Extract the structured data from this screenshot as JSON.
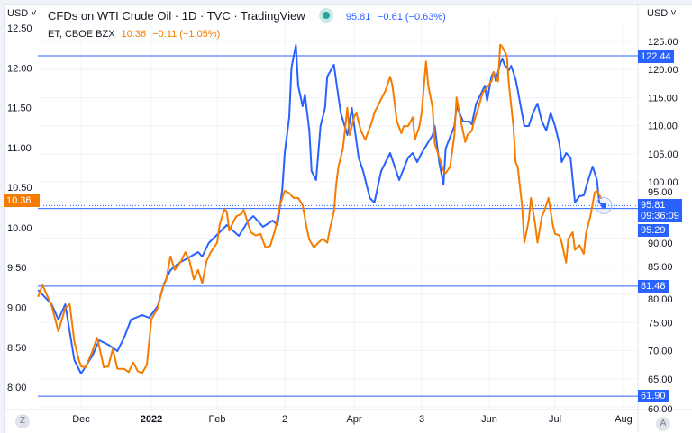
{
  "header": {
    "currency_left": "USD",
    "currency_right": "USD",
    "title": "CFDs on WTI Crude Oil · 1D · TVC · TradingView",
    "main_price": "95.81",
    "main_change": "−0.61 (−0.63%)",
    "compare_symbol": "ET, CBOE BZX",
    "compare_price": "10.36",
    "compare_change": "−0.11 (−1.05%)",
    "market_status": "open"
  },
  "badges": {
    "left_price": "10.36",
    "line_122": "122.44",
    "line_81": "81.48",
    "line_61": "61.90",
    "last_price": "95.81",
    "countdown": "09:36:09",
    "line_95": "95.29"
  },
  "buttons": {
    "zoom_label": "Z",
    "auto_label": "A"
  },
  "colors": {
    "wti": "#2962ff",
    "et": "#f57c00",
    "hline": "#2962ff",
    "grid": "#f0f3fa"
  },
  "chart_data": {
    "type": "line",
    "grid": true,
    "x_ticks": [
      {
        "label": "Dec",
        "date": "2021-12-01"
      },
      {
        "label": "2022",
        "date": "2022-01-01"
      },
      {
        "label": "Feb",
        "date": "2022-02-01"
      },
      {
        "label": "2",
        "date": "2022-03-01"
      },
      {
        "label": "Apr",
        "date": "2022-04-01"
      },
      {
        "label": "3",
        "date": "2022-05-01"
      },
      {
        "label": "Jun",
        "date": "2022-06-01"
      },
      {
        "label": "Jul",
        "date": "2022-07-01"
      },
      {
        "label": "Aug",
        "date": "2022-08-01"
      }
    ],
    "left_axis": {
      "ylim": [
        7.86,
        12.6
      ],
      "ticks": [
        "12.50",
        "12.00",
        "11.50",
        "11.00",
        "10.50",
        "10.00",
        "9.50",
        "9.00",
        "8.50",
        "8.00"
      ]
    },
    "right_axis": {
      "ylim": [
        59,
        125.5
      ],
      "ticks": [
        "125.00",
        "120.00",
        "115.00",
        "110.00",
        "105.00",
        "100.00",
        "95.00",
        "90.00",
        "85.00",
        "80.00",
        "75.00",
        "70.00",
        "65.00",
        "60.00"
      ]
    },
    "horizontal_lines": [
      122.44,
      95.29,
      81.48,
      61.9
    ],
    "series": [
      {
        "name": "CFDs on WTI Crude Oil",
        "axis": "right",
        "color": "#2962ff",
        "points": [
          [
            "2021-11-12",
            80.81
          ],
          [
            "2021-11-18",
            78.25
          ],
          [
            "2021-11-21",
            75.53
          ],
          [
            "2021-11-24",
            78.25
          ],
          [
            "2021-11-28",
            68.32
          ],
          [
            "2021-12-01",
            65.92
          ],
          [
            "2021-12-06",
            69.13
          ],
          [
            "2021-12-09",
            71.85
          ],
          [
            "2021-12-13",
            71.05
          ],
          [
            "2021-12-17",
            69.93
          ],
          [
            "2021-12-20",
            72.33
          ],
          [
            "2021-12-23",
            75.53
          ],
          [
            "2021-12-28",
            76.33
          ],
          [
            "2021-12-31",
            75.85
          ],
          [
            "2022-01-04",
            77.93
          ],
          [
            "2022-01-07",
            81.93
          ],
          [
            "2022-01-10",
            84.33
          ],
          [
            "2022-01-14",
            85.6
          ],
          [
            "2022-01-18",
            86.42
          ],
          [
            "2022-01-23",
            87.54
          ],
          [
            "2022-01-25",
            86.74
          ],
          [
            "2022-01-28",
            89.14
          ],
          [
            "2022-02-02",
            91.06
          ],
          [
            "2022-02-05",
            92.34
          ],
          [
            "2022-02-07",
            91.54
          ],
          [
            "2022-02-10",
            90.42
          ],
          [
            "2022-02-14",
            93.14
          ],
          [
            "2022-02-16",
            93.94
          ],
          [
            "2022-02-20",
            92.02
          ],
          [
            "2022-02-24",
            93.14
          ],
          [
            "2022-02-26",
            92.34
          ],
          [
            "2022-02-28",
            98.74
          ],
          [
            "2022-03-01",
            105.15
          ],
          [
            "2022-03-03",
            111.55
          ],
          [
            "2022-03-04",
            120.36
          ],
          [
            "2022-03-06",
            124.36
          ],
          [
            "2022-03-07",
            117.16
          ],
          [
            "2022-03-09",
            113.47
          ],
          [
            "2022-03-10",
            115.55
          ],
          [
            "2022-03-12",
            109.15
          ],
          [
            "2022-03-13",
            101.95
          ],
          [
            "2022-03-15",
            100.35
          ],
          [
            "2022-03-17",
            109.95
          ],
          [
            "2022-03-19",
            113.15
          ],
          [
            "2022-03-20",
            118.76
          ],
          [
            "2022-03-23",
            120.84
          ],
          [
            "2022-03-24",
            117.96
          ],
          [
            "2022-03-26",
            112.35
          ],
          [
            "2022-03-29",
            108.35
          ],
          [
            "2022-03-31",
            113.15
          ],
          [
            "2022-04-03",
            104.35
          ],
          [
            "2022-04-05",
            101.95
          ],
          [
            "2022-04-08",
            97.14
          ],
          [
            "2022-04-10",
            96.34
          ],
          [
            "2022-04-13",
            101.95
          ],
          [
            "2022-04-17",
            105.15
          ],
          [
            "2022-04-21",
            100.35
          ],
          [
            "2022-04-25",
            104.35
          ],
          [
            "2022-04-27",
            105.15
          ],
          [
            "2022-04-29",
            103.55
          ],
          [
            "2022-05-01",
            105.15
          ],
          [
            "2022-05-06",
            108.35
          ],
          [
            "2022-05-07",
            109.95
          ],
          [
            "2022-05-09",
            103.55
          ],
          [
            "2022-05-11",
            99.54
          ],
          [
            "2022-05-12",
            105.95
          ],
          [
            "2022-05-16",
            109.95
          ],
          [
            "2022-05-17",
            113.47
          ],
          [
            "2022-05-20",
            110.75
          ],
          [
            "2022-05-23",
            110.75
          ],
          [
            "2022-05-24",
            110.27
          ],
          [
            "2022-05-26",
            113.95
          ],
          [
            "2022-05-30",
            117.16
          ],
          [
            "2022-05-31",
            114.43
          ],
          [
            "2022-06-02",
            118.76
          ],
          [
            "2022-06-03",
            119.56
          ],
          [
            "2022-06-04",
            117.96
          ],
          [
            "2022-06-06",
            121.16
          ],
          [
            "2022-06-07",
            121.96
          ],
          [
            "2022-06-08",
            120.84
          ],
          [
            "2022-06-10",
            119.88
          ],
          [
            "2022-06-11",
            120.68
          ],
          [
            "2022-06-13",
            118.28
          ],
          [
            "2022-06-14",
            116.35
          ],
          [
            "2022-06-17",
            109.95
          ],
          [
            "2022-06-19",
            109.95
          ],
          [
            "2022-06-21",
            112.35
          ],
          [
            "2022-06-23",
            113.95
          ],
          [
            "2022-06-25",
            110.75
          ],
          [
            "2022-06-27",
            109.15
          ],
          [
            "2022-06-29",
            112.35
          ],
          [
            "2022-07-01",
            109.95
          ],
          [
            "2022-07-03",
            106.75
          ],
          [
            "2022-07-04",
            103.55
          ],
          [
            "2022-07-06",
            105.15
          ],
          [
            "2022-07-08",
            104.35
          ],
          [
            "2022-07-10",
            96.34
          ],
          [
            "2022-07-12",
            97.46
          ],
          [
            "2022-07-14",
            97.62
          ],
          [
            "2022-07-16",
            100.35
          ],
          [
            "2022-07-18",
            102.75
          ],
          [
            "2022-07-20",
            100.35
          ],
          [
            "2022-07-21",
            96.34
          ],
          [
            "2022-07-23",
            95.81
          ]
        ]
      },
      {
        "name": "ET, CBOE BZX",
        "axis": "left",
        "color": "#f57c00",
        "points": [
          [
            "2021-11-12",
            9.13
          ],
          [
            "2021-11-14",
            9.28
          ],
          [
            "2021-11-18",
            9.02
          ],
          [
            "2021-11-21",
            8.7
          ],
          [
            "2021-11-24",
            8.99
          ],
          [
            "2021-11-26",
            9.04
          ],
          [
            "2021-11-28",
            8.57
          ],
          [
            "2021-11-30",
            8.34
          ],
          [
            "2021-12-01",
            8.26
          ],
          [
            "2021-12-03",
            8.25
          ],
          [
            "2021-12-06",
            8.45
          ],
          [
            "2021-12-08",
            8.62
          ],
          [
            "2021-12-09",
            8.51
          ],
          [
            "2021-12-11",
            8.25
          ],
          [
            "2021-12-13",
            8.26
          ],
          [
            "2021-12-15",
            8.48
          ],
          [
            "2021-12-17",
            8.23
          ],
          [
            "2021-12-20",
            8.23
          ],
          [
            "2021-12-22",
            8.19
          ],
          [
            "2021-12-24",
            8.31
          ],
          [
            "2021-12-26",
            8.2
          ],
          [
            "2021-12-28",
            8.18
          ],
          [
            "2021-12-30",
            8.28
          ],
          [
            "2022-01-01",
            8.85
          ],
          [
            "2022-01-04",
            8.99
          ],
          [
            "2022-01-06",
            9.22
          ],
          [
            "2022-01-08",
            9.35
          ],
          [
            "2022-01-10",
            9.64
          ],
          [
            "2022-01-12",
            9.47
          ],
          [
            "2022-01-15",
            9.58
          ],
          [
            "2022-01-17",
            9.69
          ],
          [
            "2022-01-19",
            9.58
          ],
          [
            "2022-01-21",
            9.35
          ],
          [
            "2022-01-23",
            9.47
          ],
          [
            "2022-01-25",
            9.3
          ],
          [
            "2022-01-27",
            9.58
          ],
          [
            "2022-01-29",
            9.69
          ],
          [
            "2022-02-01",
            9.81
          ],
          [
            "2022-02-02",
            10.03
          ],
          [
            "2022-02-04",
            10.23
          ],
          [
            "2022-02-05",
            10.2
          ],
          [
            "2022-02-06",
            9.96
          ],
          [
            "2022-02-08",
            10.09
          ],
          [
            "2022-02-09",
            10.14
          ],
          [
            "2022-02-11",
            10.17
          ],
          [
            "2022-02-12",
            10.22
          ],
          [
            "2022-02-14",
            10.03
          ],
          [
            "2022-02-15",
            9.94
          ],
          [
            "2022-02-17",
            9.9
          ],
          [
            "2022-02-19",
            9.92
          ],
          [
            "2022-02-21",
            9.75
          ],
          [
            "2022-02-23",
            9.77
          ],
          [
            "2022-02-25",
            9.97
          ],
          [
            "2022-02-27",
            10.28
          ],
          [
            "2022-03-01",
            10.46
          ],
          [
            "2022-03-03",
            10.43
          ],
          [
            "2022-03-05",
            10.37
          ],
          [
            "2022-03-07",
            10.37
          ],
          [
            "2022-03-09",
            10.28
          ],
          [
            "2022-03-11",
            9.97
          ],
          [
            "2022-03-12",
            9.85
          ],
          [
            "2022-03-14",
            9.75
          ],
          [
            "2022-03-16",
            9.81
          ],
          [
            "2022-03-18",
            9.86
          ],
          [
            "2022-03-20",
            9.81
          ],
          [
            "2022-03-21",
            9.96
          ],
          [
            "2022-03-23",
            10.2
          ],
          [
            "2022-03-24",
            10.54
          ],
          [
            "2022-03-25",
            10.76
          ],
          [
            "2022-03-27",
            10.99
          ],
          [
            "2022-03-29",
            11.5
          ],
          [
            "2022-03-30",
            11.16
          ],
          [
            "2022-04-01",
            11.38
          ],
          [
            "2022-04-02",
            11.44
          ],
          [
            "2022-04-04",
            11.21
          ],
          [
            "2022-04-06",
            11.1
          ],
          [
            "2022-04-07",
            11.18
          ],
          [
            "2022-04-09",
            11.33
          ],
          [
            "2022-04-10",
            11.44
          ],
          [
            "2022-04-12",
            11.55
          ],
          [
            "2022-04-13",
            11.61
          ],
          [
            "2022-04-15",
            11.72
          ],
          [
            "2022-04-17",
            11.89
          ],
          [
            "2022-04-18",
            11.78
          ],
          [
            "2022-04-20",
            11.33
          ],
          [
            "2022-04-22",
            11.18
          ],
          [
            "2022-04-23",
            11.27
          ],
          [
            "2022-04-25",
            11.27
          ],
          [
            "2022-04-27",
            11.38
          ],
          [
            "2022-04-28",
            11.1
          ],
          [
            "2022-04-30",
            11.27
          ],
          [
            "2022-05-01",
            11.44
          ],
          [
            "2022-05-03",
            12.08
          ],
          [
            "2022-05-04",
            11.78
          ],
          [
            "2022-05-06",
            11.5
          ],
          [
            "2022-05-07",
            11.05
          ],
          [
            "2022-05-09",
            10.88
          ],
          [
            "2022-05-11",
            10.71
          ],
          [
            "2022-05-12",
            10.68
          ],
          [
            "2022-05-14",
            10.76
          ],
          [
            "2022-05-16",
            11.16
          ],
          [
            "2022-05-17",
            11.63
          ],
          [
            "2022-05-19",
            11.33
          ],
          [
            "2022-05-21",
            11.07
          ],
          [
            "2022-05-22",
            11.16
          ],
          [
            "2022-05-24",
            11.21
          ],
          [
            "2022-05-25",
            11.33
          ],
          [
            "2022-05-27",
            11.5
          ],
          [
            "2022-05-29",
            11.69
          ],
          [
            "2022-05-30",
            11.72
          ],
          [
            "2022-06-02",
            11.83
          ],
          [
            "2022-06-03",
            11.95
          ],
          [
            "2022-06-05",
            11.83
          ],
          [
            "2022-06-06",
            12.29
          ],
          [
            "2022-06-07",
            12.26
          ],
          [
            "2022-06-09",
            12.15
          ],
          [
            "2022-06-10",
            11.78
          ],
          [
            "2022-06-12",
            11.27
          ],
          [
            "2022-06-13",
            10.82
          ],
          [
            "2022-06-14",
            10.76
          ],
          [
            "2022-06-16",
            10.26
          ],
          [
            "2022-06-17",
            9.81
          ],
          [
            "2022-06-19",
            10.09
          ],
          [
            "2022-06-20",
            10.37
          ],
          [
            "2022-06-22",
            10.03
          ],
          [
            "2022-06-23",
            9.81
          ],
          [
            "2022-06-25",
            10.14
          ],
          [
            "2022-06-26",
            10.2
          ],
          [
            "2022-06-28",
            10.37
          ],
          [
            "2022-06-30",
            10.03
          ],
          [
            "2022-07-01",
            9.92
          ],
          [
            "2022-07-03",
            9.9
          ],
          [
            "2022-07-04",
            9.81
          ],
          [
            "2022-07-06",
            9.56
          ],
          [
            "2022-07-07",
            9.86
          ],
          [
            "2022-07-09",
            9.94
          ],
          [
            "2022-07-10",
            9.72
          ],
          [
            "2022-07-12",
            9.78
          ],
          [
            "2022-07-14",
            9.67
          ],
          [
            "2022-07-15",
            9.92
          ],
          [
            "2022-07-17",
            10.14
          ],
          [
            "2022-07-19",
            10.44
          ],
          [
            "2022-07-20",
            10.46
          ],
          [
            "2022-07-22",
            10.36
          ]
        ]
      }
    ]
  }
}
